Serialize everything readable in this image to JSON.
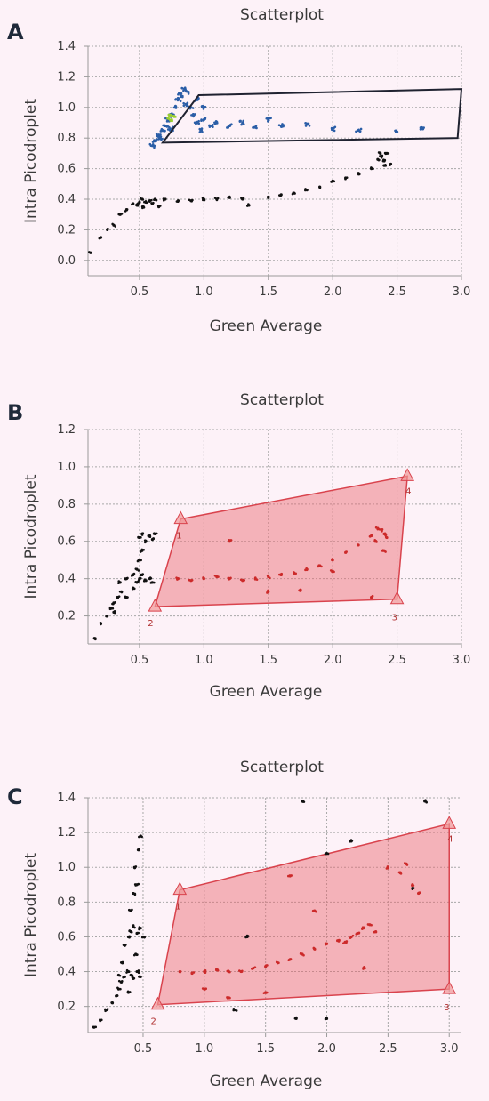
{
  "colors": {
    "background": "#fdf2f8",
    "grid": "#a8a8a8",
    "axis": "#9a9a9a",
    "text": "#3a3a3a",
    "points": "#111111",
    "blue_points": "#2b5ea7",
    "green_points": "#9acd32",
    "gate_black": "#1f2230",
    "gate_red_fill": "rgba(232,100,108,0.45)",
    "gate_red_edge": "#d9434d",
    "red_points": "#cc2a2a"
  },
  "chart_data": [
    {
      "panel_label": "A",
      "type": "scatter",
      "title": "Scatterplot",
      "xlabel": "Green Average",
      "ylabel": "Intra Picodroplet",
      "xlim": [
        0.1,
        3.0
      ],
      "ylim": [
        -0.1,
        1.4
      ],
      "xticks": [
        "0.5",
        "1.0",
        "1.5",
        "2.0",
        "2.5",
        "3.0"
      ],
      "yticks": [
        "0.0",
        "0.2",
        "0.4",
        "0.6",
        "0.8",
        "1.0",
        "1.2",
        "1.4"
      ],
      "grid": true,
      "series": [
        {
          "kind": "black",
          "points": [
            [
              0.12,
              0.05
            ],
            [
              0.2,
              0.15
            ],
            [
              0.25,
              0.2
            ],
            [
              0.3,
              0.23
            ],
            [
              0.35,
              0.3
            ],
            [
              0.4,
              0.33
            ],
            [
              0.45,
              0.37
            ],
            [
              0.5,
              0.38
            ],
            [
              0.52,
              0.4
            ],
            [
              0.55,
              0.38
            ],
            [
              0.58,
              0.39
            ],
            [
              0.6,
              0.37
            ],
            [
              0.62,
              0.4
            ],
            [
              0.48,
              0.36
            ],
            [
              0.53,
              0.35
            ],
            [
              0.7,
              0.4
            ],
            [
              0.8,
              0.39
            ],
            [
              0.9,
              0.39
            ],
            [
              1.0,
              0.4
            ],
            [
              1.1,
              0.4
            ],
            [
              1.2,
              0.41
            ],
            [
              1.3,
              0.4
            ],
            [
              1.5,
              0.41
            ],
            [
              1.6,
              0.43
            ],
            [
              1.7,
              0.44
            ],
            [
              1.8,
              0.46
            ],
            [
              1.9,
              0.48
            ],
            [
              2.0,
              0.52
            ],
            [
              2.1,
              0.54
            ],
            [
              2.2,
              0.57
            ],
            [
              2.3,
              0.6
            ],
            [
              2.35,
              0.66
            ],
            [
              2.38,
              0.68
            ],
            [
              2.4,
              0.65
            ],
            [
              2.42,
              0.7
            ],
            [
              2.45,
              0.63
            ],
            [
              2.4,
              0.62
            ],
            [
              2.37,
              0.7
            ],
            [
              1.35,
              0.36
            ],
            [
              0.65,
              0.35
            ]
          ]
        },
        {
          "kind": "blue",
          "points": [
            [
              0.62,
              0.78
            ],
            [
              0.65,
              0.82
            ],
            [
              0.68,
              0.85
            ],
            [
              0.7,
              0.88
            ],
            [
              0.72,
              0.92
            ],
            [
              0.75,
              0.95
            ],
            [
              0.78,
              1.0
            ],
            [
              0.8,
              1.05
            ],
            [
              0.82,
              1.08
            ],
            [
              0.85,
              1.12
            ],
            [
              0.88,
              1.1
            ],
            [
              0.9,
              1.0
            ],
            [
              0.92,
              0.95
            ],
            [
              0.95,
              0.9
            ],
            [
              1.0,
              0.92
            ],
            [
              1.05,
              0.88
            ],
            [
              1.1,
              0.9
            ],
            [
              1.2,
              0.88
            ],
            [
              1.3,
              0.9
            ],
            [
              1.4,
              0.87
            ],
            [
              1.6,
              0.88
            ],
            [
              1.8,
              0.89
            ],
            [
              2.0,
              0.86
            ],
            [
              2.2,
              0.85
            ],
            [
              2.5,
              0.84
            ],
            [
              2.7,
              0.86
            ],
            [
              0.6,
              0.75
            ],
            [
              0.66,
              0.8
            ],
            [
              0.74,
              0.86
            ],
            [
              0.86,
              1.02
            ],
            [
              0.95,
              1.05
            ],
            [
              1.0,
              1.0
            ],
            [
              0.98,
              0.85
            ],
            [
              1.5,
              0.92
            ]
          ]
        },
        {
          "kind": "green",
          "points": [
            [
              0.72,
              0.93
            ],
            [
              0.75,
              0.92
            ],
            [
              0.74,
              0.95
            ],
            [
              0.77,
              0.94
            ]
          ]
        }
      ],
      "gate": {
        "style": "black",
        "vertices": [
          [
            0.68,
            0.77
          ],
          [
            0.96,
            1.08
          ],
          [
            3.0,
            1.12
          ],
          [
            2.97,
            0.8
          ]
        ]
      }
    },
    {
      "panel_label": "B",
      "type": "scatter",
      "title": "Scatterplot",
      "xlabel": "Green Average",
      "ylabel": "Intra Picodroplet",
      "xlim": [
        0.1,
        3.0
      ],
      "ylim": [
        0.05,
        1.2
      ],
      "xticks": [
        "0.5",
        "1.0",
        "1.5",
        "2.0",
        "2.5",
        "3.0"
      ],
      "yticks": [
        "0.2",
        "0.4",
        "0.6",
        "0.8",
        "1.0",
        "1.2"
      ],
      "grid": true,
      "series": [
        {
          "kind": "black",
          "points": [
            [
              0.15,
              0.08
            ],
            [
              0.2,
              0.16
            ],
            [
              0.25,
              0.2
            ],
            [
              0.28,
              0.24
            ],
            [
              0.3,
              0.27
            ],
            [
              0.33,
              0.3
            ],
            [
              0.36,
              0.33
            ],
            [
              0.4,
              0.3
            ],
            [
              0.45,
              0.35
            ],
            [
              0.48,
              0.38
            ],
            [
              0.5,
              0.4
            ],
            [
              0.52,
              0.42
            ],
            [
              0.55,
              0.39
            ],
            [
              0.58,
              0.4
            ],
            [
              0.6,
              0.38
            ],
            [
              0.35,
              0.38
            ],
            [
              0.4,
              0.4
            ],
            [
              0.45,
              0.42
            ],
            [
              0.5,
              0.62
            ],
            [
              0.52,
              0.64
            ],
            [
              0.55,
              0.6
            ],
            [
              0.58,
              0.63
            ],
            [
              0.6,
              0.61
            ],
            [
              0.62,
              0.64
            ],
            [
              0.5,
              0.5
            ],
            [
              0.52,
              0.55
            ],
            [
              0.48,
              0.45
            ],
            [
              0.3,
              0.22
            ]
          ]
        },
        {
          "kind": "red",
          "points": [
            [
              0.8,
              0.4
            ],
            [
              0.9,
              0.39
            ],
            [
              1.0,
              0.4
            ],
            [
              1.1,
              0.41
            ],
            [
              1.2,
              0.4
            ],
            [
              1.3,
              0.39
            ],
            [
              1.4,
              0.4
            ],
            [
              1.5,
              0.41
            ],
            [
              1.6,
              0.42
            ],
            [
              1.7,
              0.43
            ],
            [
              1.8,
              0.45
            ],
            [
              1.9,
              0.47
            ],
            [
              2.0,
              0.5
            ],
            [
              2.1,
              0.54
            ],
            [
              2.2,
              0.58
            ],
            [
              2.3,
              0.63
            ],
            [
              2.35,
              0.67
            ],
            [
              2.38,
              0.66
            ],
            [
              2.4,
              0.64
            ],
            [
              2.42,
              0.62
            ],
            [
              2.33,
              0.6
            ],
            [
              1.5,
              0.33
            ],
            [
              1.75,
              0.34
            ],
            [
              2.0,
              0.44
            ],
            [
              1.2,
              0.6
            ],
            [
              2.3,
              0.3
            ],
            [
              2.4,
              0.55
            ]
          ]
        }
      ],
      "gate": {
        "style": "red",
        "vertices": [
          [
            0.82,
            0.72
          ],
          [
            0.62,
            0.25
          ],
          [
            2.5,
            0.29
          ],
          [
            2.58,
            0.95
          ]
        ],
        "vertex_labels": [
          "1",
          "2",
          "3",
          "4"
        ]
      }
    },
    {
      "panel_label": "C",
      "type": "scatter",
      "title": "Scatterplot",
      "xlabel": "Green Average",
      "ylabel": "Intra Picodroplet",
      "xlim": [
        0.05,
        3.1
      ],
      "ylim": [
        0.05,
        1.4
      ],
      "xticks": [
        "0.5",
        "1.0",
        "1.5",
        "2.0",
        "2.5",
        "3.0"
      ],
      "yticks": [
        "0.2",
        "0.4",
        "0.6",
        "0.8",
        "1.0",
        "1.2",
        "1.4"
      ],
      "grid": true,
      "series": [
        {
          "kind": "black",
          "points": [
            [
              0.1,
              0.08
            ],
            [
              0.15,
              0.12
            ],
            [
              0.2,
              0.18
            ],
            [
              0.25,
              0.22
            ],
            [
              0.28,
              0.26
            ],
            [
              0.3,
              0.3
            ],
            [
              0.32,
              0.34
            ],
            [
              0.35,
              0.37
            ],
            [
              0.38,
              0.4
            ],
            [
              0.4,
              0.38
            ],
            [
              0.42,
              0.36
            ],
            [
              0.45,
              0.4
            ],
            [
              0.48,
              0.37
            ],
            [
              0.35,
              0.55
            ],
            [
              0.38,
              0.6
            ],
            [
              0.4,
              0.63
            ],
            [
              0.42,
              0.66
            ],
            [
              0.45,
              0.62
            ],
            [
              0.48,
              0.65
            ],
            [
              0.5,
              0.6
            ],
            [
              0.4,
              0.75
            ],
            [
              0.42,
              0.85
            ],
            [
              0.45,
              0.9
            ],
            [
              0.43,
              1.0
            ],
            [
              0.46,
              1.1
            ],
            [
              0.44,
              0.5
            ],
            [
              0.38,
              0.28
            ],
            [
              0.3,
              0.38
            ],
            [
              0.33,
              0.45
            ],
            [
              0.48,
              1.18
            ],
            [
              1.25,
              0.18
            ],
            [
              2.0,
              0.13
            ],
            [
              1.75,
              0.13
            ],
            [
              1.8,
              1.38
            ],
            [
              2.8,
              1.38
            ],
            [
              2.2,
              1.15
            ],
            [
              2.0,
              1.08
            ],
            [
              1.35,
              0.6
            ],
            [
              2.7,
              0.88
            ]
          ]
        },
        {
          "kind": "red",
          "points": [
            [
              0.8,
              0.4
            ],
            [
              0.9,
              0.39
            ],
            [
              1.0,
              0.4
            ],
            [
              1.1,
              0.41
            ],
            [
              1.2,
              0.4
            ],
            [
              1.3,
              0.4
            ],
            [
              1.4,
              0.42
            ],
            [
              1.5,
              0.43
            ],
            [
              1.6,
              0.45
            ],
            [
              1.7,
              0.47
            ],
            [
              1.8,
              0.5
            ],
            [
              1.9,
              0.53
            ],
            [
              2.0,
              0.56
            ],
            [
              2.1,
              0.58
            ],
            [
              2.2,
              0.6
            ],
            [
              2.3,
              0.65
            ],
            [
              2.35,
              0.67
            ],
            [
              2.4,
              0.63
            ],
            [
              2.25,
              0.62
            ],
            [
              2.15,
              0.57
            ],
            [
              1.0,
              0.3
            ],
            [
              1.2,
              0.25
            ],
            [
              1.5,
              0.28
            ],
            [
              2.6,
              0.97
            ],
            [
              2.7,
              0.9
            ],
            [
              2.65,
              1.02
            ],
            [
              2.75,
              0.85
            ],
            [
              2.5,
              1.0
            ],
            [
              1.7,
              0.95
            ],
            [
              1.9,
              0.75
            ],
            [
              2.3,
              0.42
            ]
          ]
        }
      ],
      "gate": {
        "style": "red",
        "vertices": [
          [
            0.8,
            0.87
          ],
          [
            0.62,
            0.21
          ],
          [
            3.0,
            0.3
          ],
          [
            3.0,
            1.25
          ]
        ],
        "vertex_labels": [
          "1",
          "2",
          "3",
          "4"
        ]
      }
    }
  ]
}
